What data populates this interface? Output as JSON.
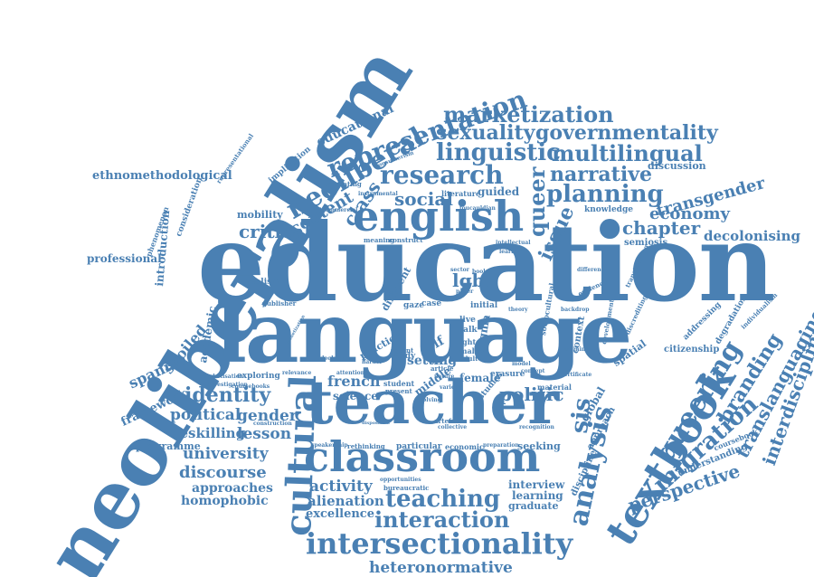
{
  "words": {
    "neoliberalism": "neoliberalism",
    "education": "education",
    "language": "language",
    "teacher": "teacher",
    "classroom": "classroom",
    "english": "english",
    "intersectionality": "intersectionality",
    "representation": "representation",
    "neoliberal": "neoliberal",
    "textbook": "textbook",
    "cultural": "cultural",
    "analysis": "analysis",
    "queering": "queering",
    "migration": "migration",
    "branding": "branding",
    "translanguaging": "translanguaging",
    "interdisciplinary": "interdisciplinary",
    "perspective": "perspective",
    "research": "research",
    "linguistic": "linguistic",
    "multilingual": "multilingual",
    "marketization": "marketization",
    "governmentality": "governmentality",
    "sexuality": "sexuality",
    "narrative": "narrative",
    "planning": "planning",
    "queer": "queer",
    "social": "social",
    "identity": "identity",
    "politic": "politic",
    "critical": "critical",
    "teaching": "teaching",
    "interaction": "interaction",
    "heteronormative": "heteronormative",
    "university": "university",
    "discourse": "discourse",
    "approaches": "approaches",
    "homophobic": "homophobic",
    "gender": "gender",
    "lesson": "lesson",
    "political": "political",
    "deskilling": "deskilling",
    "programme": "programme",
    "framework": "framework",
    "spanish": "spanish",
    "spoiled": "spoiled",
    "activity": "activity",
    "alienation": "alienation",
    "excellence": "excellence",
    "french": "french",
    "science": "science",
    "ethnomethodological": "ethnomethodological",
    "professional": "professional",
    "transgender": "transgender",
    "economy": "economy",
    "chapter": "chapter",
    "decolonising": "decolonising",
    "discussion": "discussion",
    "educational": "educational",
    "content": "content",
    "class": "class",
    "issue": "issue",
    "lgbt": "lgbt",
    "global": "global",
    "sis": "sis",
    "mobility": "mobility",
    "introduction": "introduction",
    "academic": "academic",
    "realism": "realism",
    "practice": "practice",
    "interview": "interview",
    "learning": "learning",
    "graduate": "graduate",
    "setting": "setting",
    "middle": "middle",
    "semiosis": "semiosis",
    "spatial": "spatial",
    "citizenship": "citizenship",
    "approach": "approach",
    "guided": "guided",
    "stigma": "stigma",
    "self": "self",
    "female": "female",
    "student": "student",
    "studies": "studies",
    "material": "material",
    "seeking": "seeking",
    "economic": "economic",
    "particular": "particular",
    "context": "context",
    "discipline": "discipline",
    "understanding": "understanding",
    "coursebook": "coursebook",
    "exploring": "exploring",
    "marketisation": "marketisation",
    "different": "different",
    "implication": "implication",
    "consideration": "consideration",
    "phenomenon": "phenomenon",
    "representational": "representational",
    "addressing": "addressing",
    "degradation": "degradation",
    "individualism": "individualism",
    "discrediting": "discrediting",
    "transitioning": "transitioning",
    "knowledge": "knowledge",
    "sociocultural": "sociocultural",
    "development": "development",
    "evidence": "evidence",
    "difference": "difference",
    "training": "training",
    "recognition": "recognition",
    "collective": "collective",
    "artefact": "artefact",
    "opportunities": "opportunities",
    "bureaucratic": "bureaucratic",
    "rethinking": "rethinking",
    "preparation": "preparation",
    "evolving": "evolving",
    "present": "present",
    "study": "study",
    "initial": "initial",
    "gaze": "gaze",
    "case": "case",
    "live": "live",
    "talk": "talk",
    "lghtq": "lghtq",
    "male": "male",
    "adult": "adult",
    "sector": "sector",
    "erasure": "erasure",
    "article": "article",
    "nature": "nature",
    "recent": "recent",
    "publisher": "publisher",
    "meaning": "meaning",
    "construct": "construct",
    "literature": "literature",
    "mediating": "mediating",
    "instrumental": "instrumental",
    "commercial": "commercial",
    "consumerism": "consumerism",
    "foucauldian": "foucauldian",
    "intellectual": "intellectual",
    "learner": "learner",
    "theory": "theory",
    "model": "model",
    "concept": "concept",
    "various": "various",
    "harder": "harder",
    "relevance": "relevance",
    "attention": "attention",
    "ideology": "ideology",
    "construction": "construction",
    "investigation": "investigation",
    "coursebooks": "coursebooks",
    "speakership": "speakership",
    "disposition": "disposition",
    "certificate": "certificate",
    "monetization": "monetization",
    "backdrop": "backdrop",
    "paper": "paper",
    "book": "book"
  }
}
